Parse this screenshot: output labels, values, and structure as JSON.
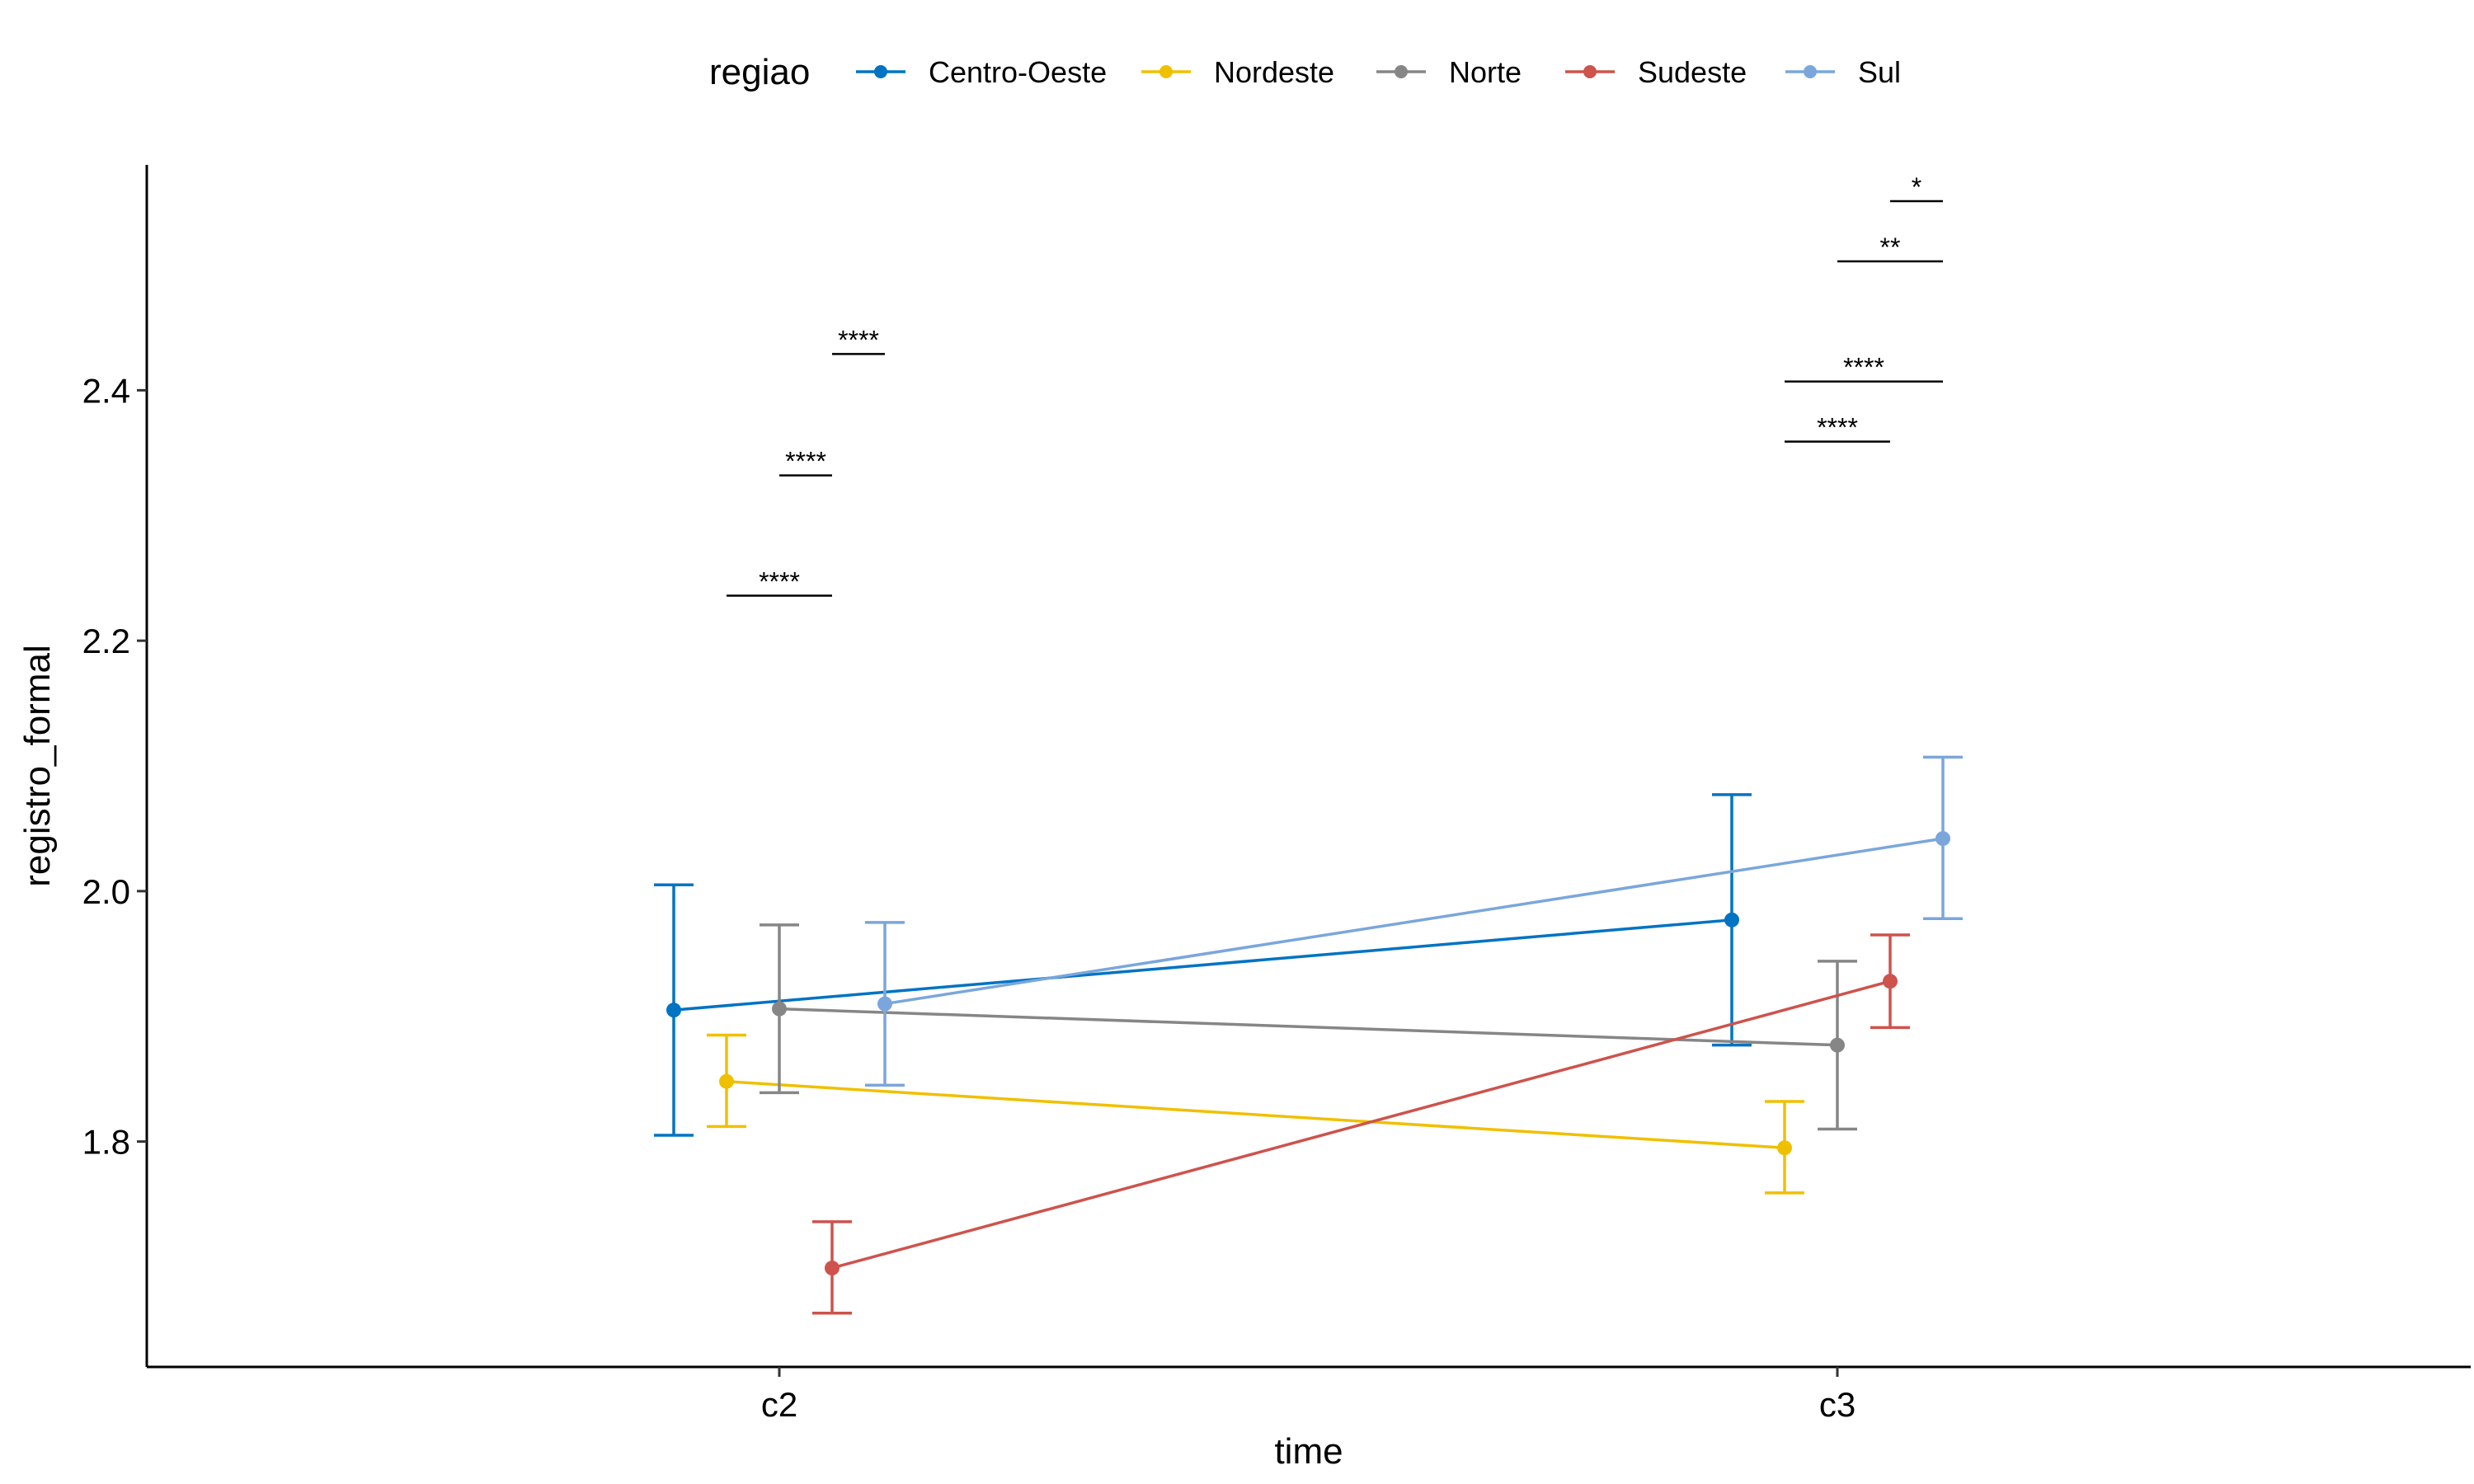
{
  "chart_data": {
    "type": "line",
    "xlabel": "time",
    "ylabel": "registro_formal",
    "categories": [
      "c2",
      "c3"
    ],
    "ylim": [
      1.62,
      2.58
    ],
    "yticks": [
      1.8,
      2.0,
      2.2,
      2.4
    ],
    "ytick_labels": [
      "1.8",
      "2.0",
      "2.2",
      "2.4"
    ],
    "grid": false,
    "legend": {
      "title": "regiao",
      "placement": "top",
      "items": [
        "Centro-Oeste",
        "Nordeste",
        "Norte",
        "Sudeste",
        "Sul"
      ]
    },
    "series": [
      {
        "name": "Centro-Oeste",
        "color": "#0073C2",
        "dodge": -2,
        "values": [
          1.905,
          1.977
        ],
        "lower": [
          1.805,
          1.877
        ],
        "upper": [
          2.005,
          2.077
        ]
      },
      {
        "name": "Nordeste",
        "color": "#EFC000",
        "dodge": -1,
        "values": [
          1.848,
          1.795
        ],
        "lower": [
          1.812,
          1.759
        ],
        "upper": [
          1.885,
          1.832
        ]
      },
      {
        "name": "Norte",
        "color": "#868686",
        "dodge": 0,
        "values": [
          1.906,
          1.877
        ],
        "lower": [
          1.839,
          1.81
        ],
        "upper": [
          1.973,
          1.944
        ]
      },
      {
        "name": "Sudeste",
        "color": "#CD534C",
        "dodge": 1,
        "values": [
          1.699,
          1.928
        ],
        "lower": [
          1.663,
          1.891
        ],
        "upper": [
          1.736,
          1.965
        ]
      },
      {
        "name": "Sul",
        "color": "#7AA6DC",
        "dodge": 2,
        "values": [
          1.91,
          2.042
        ],
        "lower": [
          1.845,
          1.978
        ],
        "upper": [
          1.975,
          2.107
        ]
      }
    ],
    "annotations": [
      {
        "category": "c2",
        "from_dodge": -1,
        "to_dodge": 1,
        "y": 2.236,
        "label": "****"
      },
      {
        "category": "c2",
        "from_dodge": 0,
        "to_dodge": 1,
        "y": 2.332,
        "label": "****"
      },
      {
        "category": "c2",
        "from_dodge": 1,
        "to_dodge": 2,
        "y": 2.429,
        "label": "****"
      },
      {
        "category": "c3",
        "from_dodge": -1,
        "to_dodge": 1,
        "y": 2.359,
        "label": "****"
      },
      {
        "category": "c3",
        "from_dodge": -1,
        "to_dodge": 2,
        "y": 2.407,
        "label": "****"
      },
      {
        "category": "c3",
        "from_dodge": 0,
        "to_dodge": 2,
        "y": 2.503,
        "label": "**"
      },
      {
        "category": "c3",
        "from_dodge": 1,
        "to_dodge": 2,
        "y": 2.551,
        "label": "*"
      }
    ]
  }
}
